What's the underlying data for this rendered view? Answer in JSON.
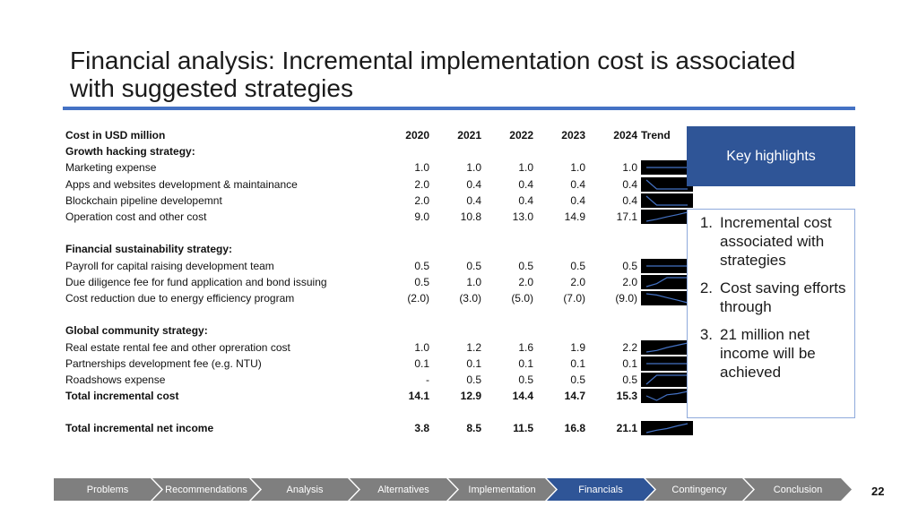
{
  "title": "Financial analysis: Incremental implementation cost is associated with suggested strategies",
  "table": {
    "header": {
      "label": "Cost in USD million",
      "years": [
        "2020",
        "2021",
        "2022",
        "2023",
        "2024"
      ],
      "trend": "Trend"
    },
    "rows": [
      {
        "label": "Growth hacking strategy:",
        "bold": true
      },
      {
        "label": "Marketing expense",
        "values": [
          "1.0",
          "1.0",
          "1.0",
          "1.0",
          "1.0"
        ],
        "series": [
          1.0,
          1.0,
          1.0,
          1.0,
          1.0
        ]
      },
      {
        "label": "Apps and websites development & maintainance",
        "values": [
          "2.0",
          "0.4",
          "0.4",
          "0.4",
          "0.4"
        ],
        "series": [
          2.0,
          0.4,
          0.4,
          0.4,
          0.4
        ]
      },
      {
        "label": "Blockchain pipeline developemnt",
        "values": [
          "2.0",
          "0.4",
          "0.4",
          "0.4",
          "0.4"
        ],
        "series": [
          2.0,
          0.4,
          0.4,
          0.4,
          0.4
        ]
      },
      {
        "label": "Operation cost and other cost",
        "values": [
          "9.0",
          "10.8",
          "13.0",
          "14.9",
          "17.1"
        ],
        "series": [
          9.0,
          10.8,
          13.0,
          14.9,
          17.1
        ]
      },
      {
        "label": ""
      },
      {
        "label": "Financial sustainability strategy:",
        "bold": true
      },
      {
        "label": "Payroll  for capital raising development team",
        "values": [
          "0.5",
          "0.5",
          "0.5",
          "0.5",
          "0.5"
        ],
        "series": [
          0.5,
          0.5,
          0.5,
          0.5,
          0.5
        ]
      },
      {
        "label": "Due diligence fee for fund application and bond issuing",
        "values": [
          "0.5",
          "1.0",
          "2.0",
          "2.0",
          "2.0"
        ],
        "series": [
          0.5,
          1.0,
          2.0,
          2.0,
          2.0
        ]
      },
      {
        "label": "Cost reduction due to energy efficiency program",
        "values": [
          "(2.0)",
          "(3.0)",
          "(5.0)",
          "(7.0)",
          "(9.0)"
        ],
        "series": [
          -2.0,
          -3.0,
          -5.0,
          -7.0,
          -9.0
        ]
      },
      {
        "label": ""
      },
      {
        "label": "Global community strategy:",
        "bold": true
      },
      {
        "label": "Real estate rental fee and other opreration cost",
        "values": [
          "1.0",
          "1.2",
          "1.6",
          "1.9",
          "2.2"
        ],
        "series": [
          1.0,
          1.2,
          1.6,
          1.9,
          2.2
        ]
      },
      {
        "label": "Partnerships development fee (e.g. NTU)",
        "values": [
          "0.1",
          "0.1",
          "0.1",
          "0.1",
          "0.1"
        ],
        "series": [
          0.1,
          0.1,
          0.1,
          0.1,
          0.1
        ]
      },
      {
        "label": "Roadshows expense",
        "values": [
          "-",
          "0.5",
          "0.5",
          "0.5",
          "0.5"
        ],
        "series": [
          0,
          0.5,
          0.5,
          0.5,
          0.5
        ]
      },
      {
        "label": "Total incremental cost",
        "bold": true,
        "values": [
          "14.1",
          "12.9",
          "14.4",
          "14.7",
          "15.3"
        ],
        "series": [
          14.1,
          12.9,
          14.4,
          14.7,
          15.3
        ]
      },
      {
        "label": ""
      },
      {
        "label": "Total incremental net income",
        "bold": true,
        "values": [
          "3.8",
          "8.5",
          "11.5",
          "16.8",
          "21.1"
        ],
        "series": [
          3.8,
          8.5,
          11.5,
          16.8,
          21.1
        ]
      }
    ]
  },
  "highlights": {
    "title": "Key highlights",
    "items": [
      {
        "num": "1.",
        "text": "Incremental cost associated with strategies"
      },
      {
        "num": "2.",
        "text": "Cost saving efforts through"
      },
      {
        "num": "3.",
        "text": "21 million net income will be achieved"
      }
    ]
  },
  "nav": {
    "items": [
      "Problems",
      "Recommendations",
      "Analysis",
      "Alternatives",
      "Implementation",
      "Financials",
      "Contingency",
      "Conclusion"
    ],
    "active": "Financials"
  },
  "page_number": "22",
  "colors": {
    "accent": "#4472c4",
    "dark_blue": "#2f5597",
    "nav_gray": "#7f7f7f",
    "spark_line": "#4472c4",
    "spark_bg": "#000000"
  }
}
